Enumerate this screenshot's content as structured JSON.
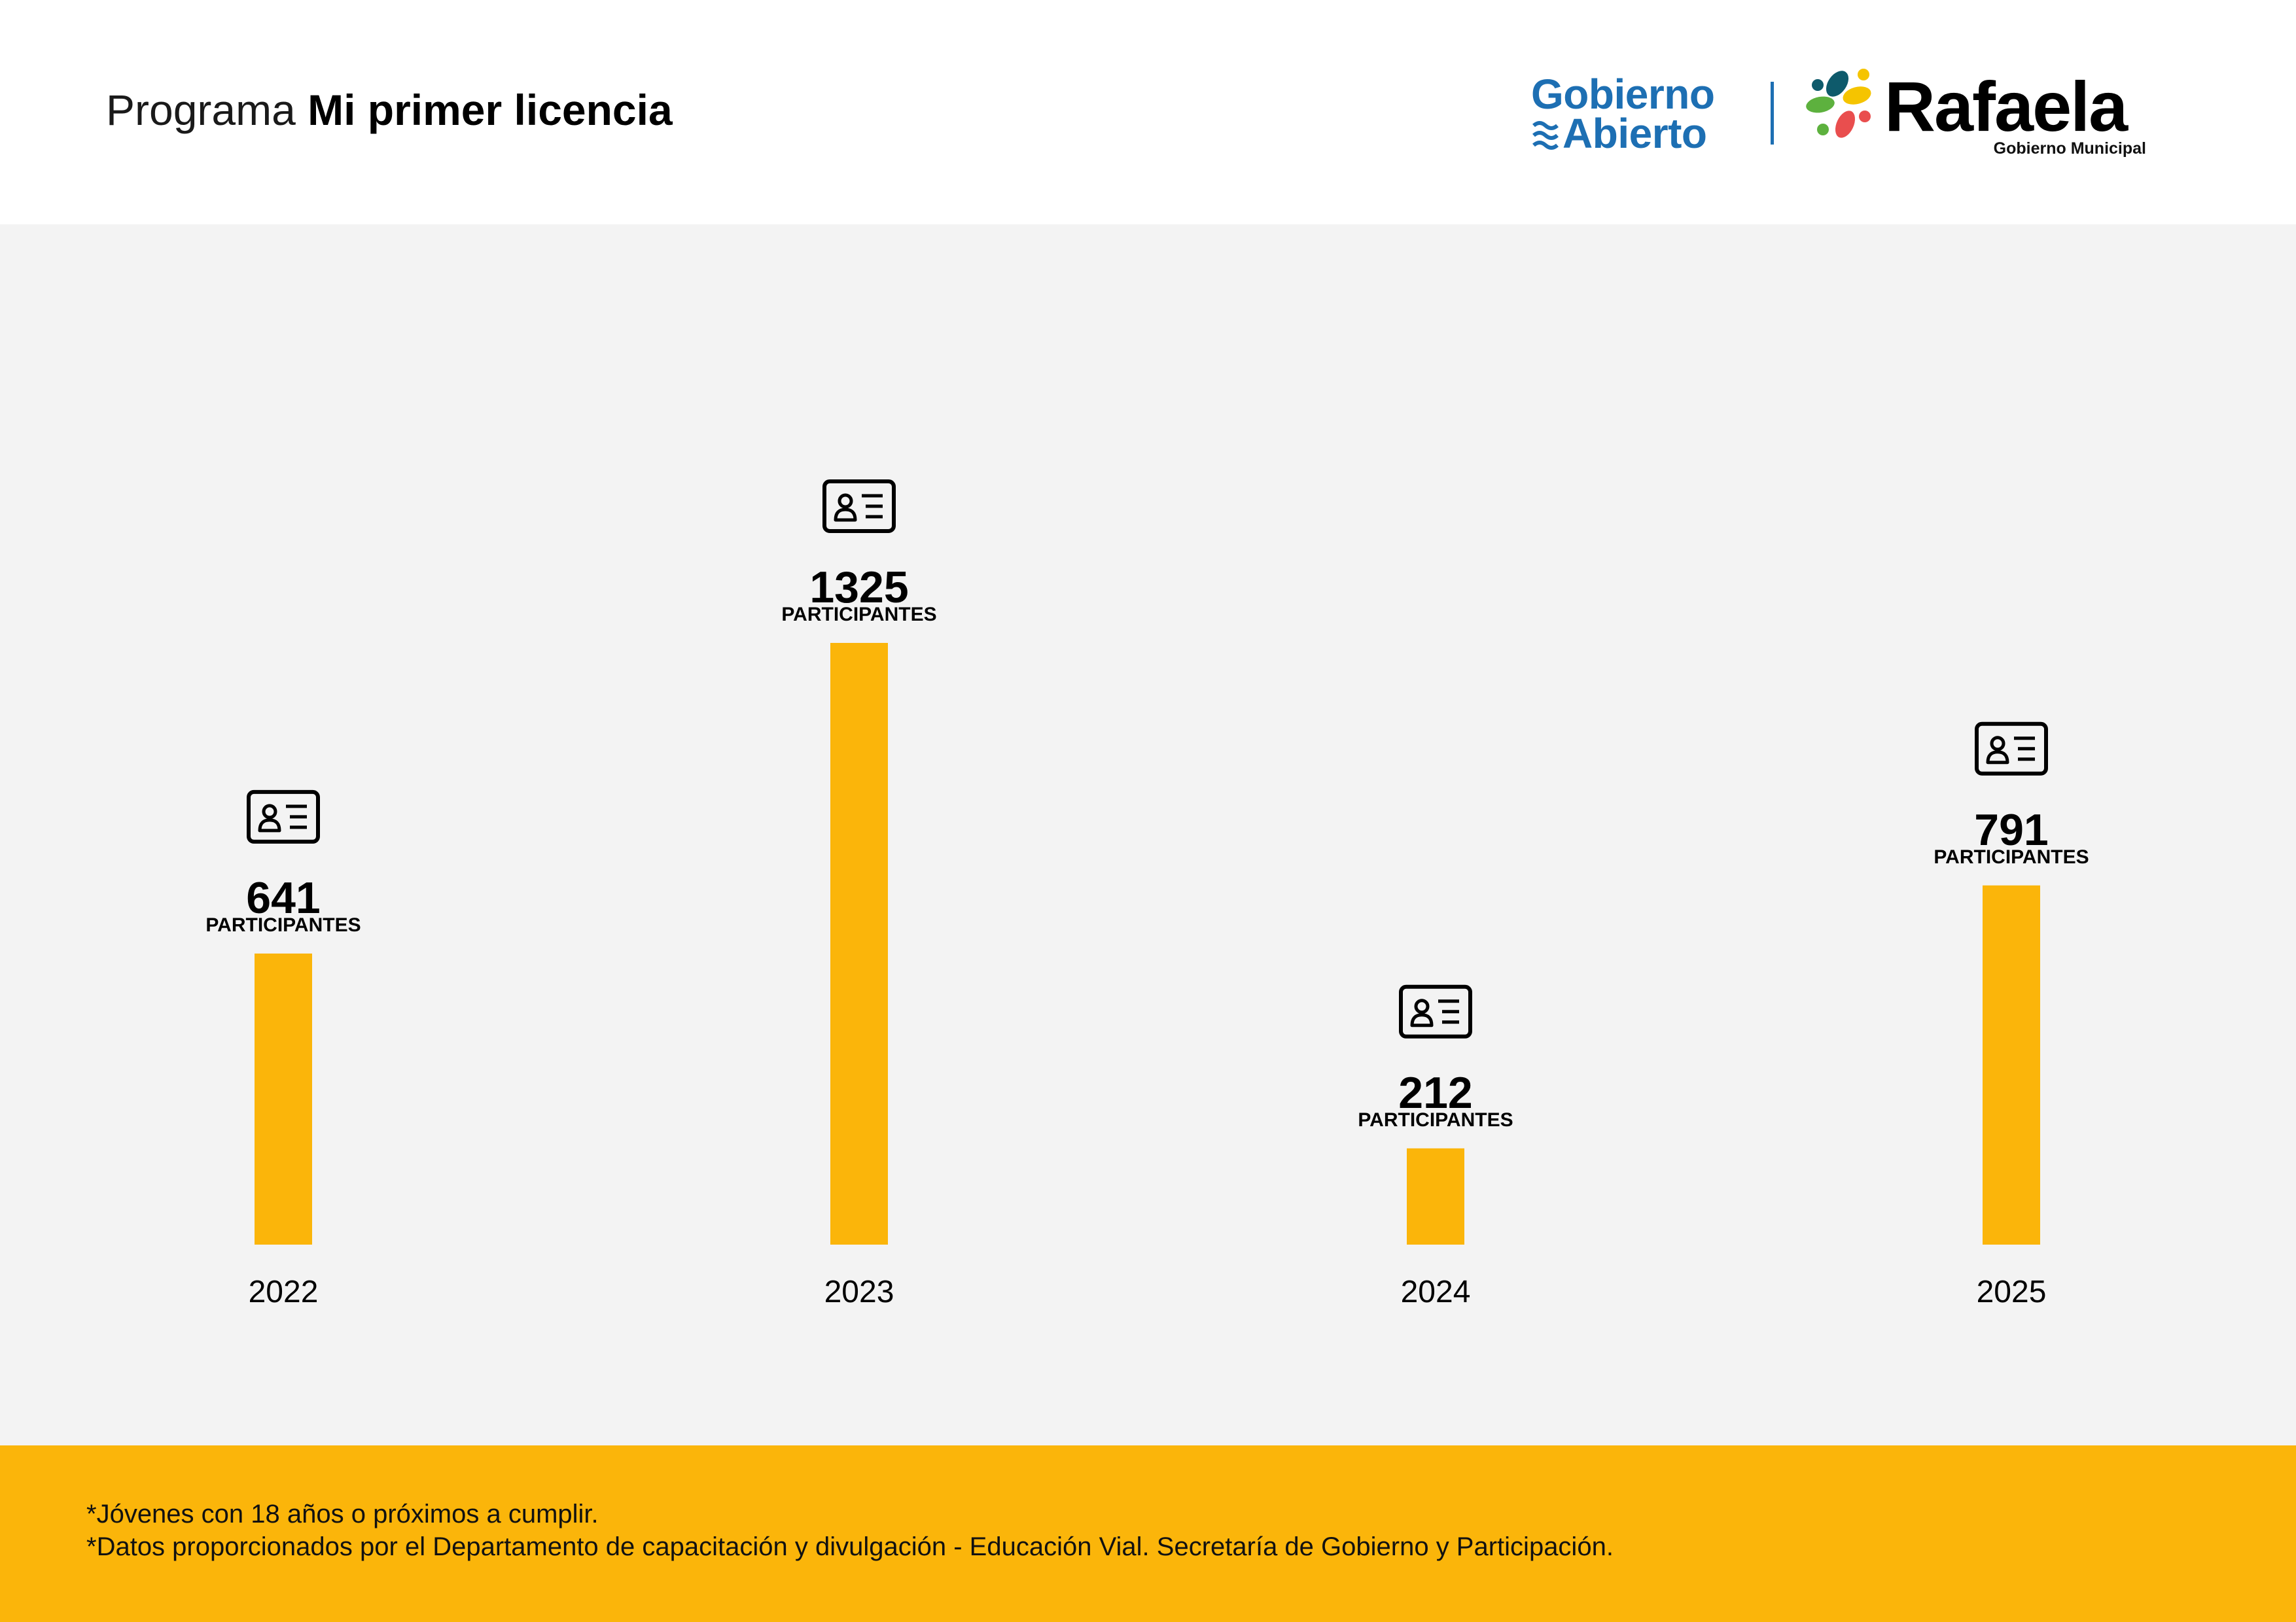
{
  "header": {
    "title_light": "Programa",
    "title_bold": "Mi primer licencia"
  },
  "logos": {
    "gobierno_abierto": {
      "line1": "Gobierno",
      "line2": "Abierto",
      "color": "#1d6fb3"
    },
    "rafaela": {
      "name": "Rafaela",
      "subtitle": "Gobierno Municipal",
      "mark_colors": [
        "#0e5a6b",
        "#f5c400",
        "#5db13e",
        "#e94e4e"
      ]
    }
  },
  "chart_data": {
    "type": "bar",
    "categories": [
      "2022",
      "2023",
      "2024",
      "2025"
    ],
    "values": [
      641,
      1325,
      212,
      791
    ],
    "value_unit_label": "PARTICIPANTES",
    "icon": "id-card-icon",
    "bar_color": "#fbb50a",
    "title": "",
    "xlabel": "",
    "ylabel": "",
    "ylim": [
      0,
      1325
    ],
    "grid": false,
    "legend": "none"
  },
  "footer": {
    "notes": [
      "*Jóvenes con 18 años o próximos a cumplir.",
      "*Datos proporcionados por el Departamento de capacitación y divulgación - Educación Vial. Secretaría de Gobierno y Participación."
    ],
    "background": "#fbb50a"
  }
}
